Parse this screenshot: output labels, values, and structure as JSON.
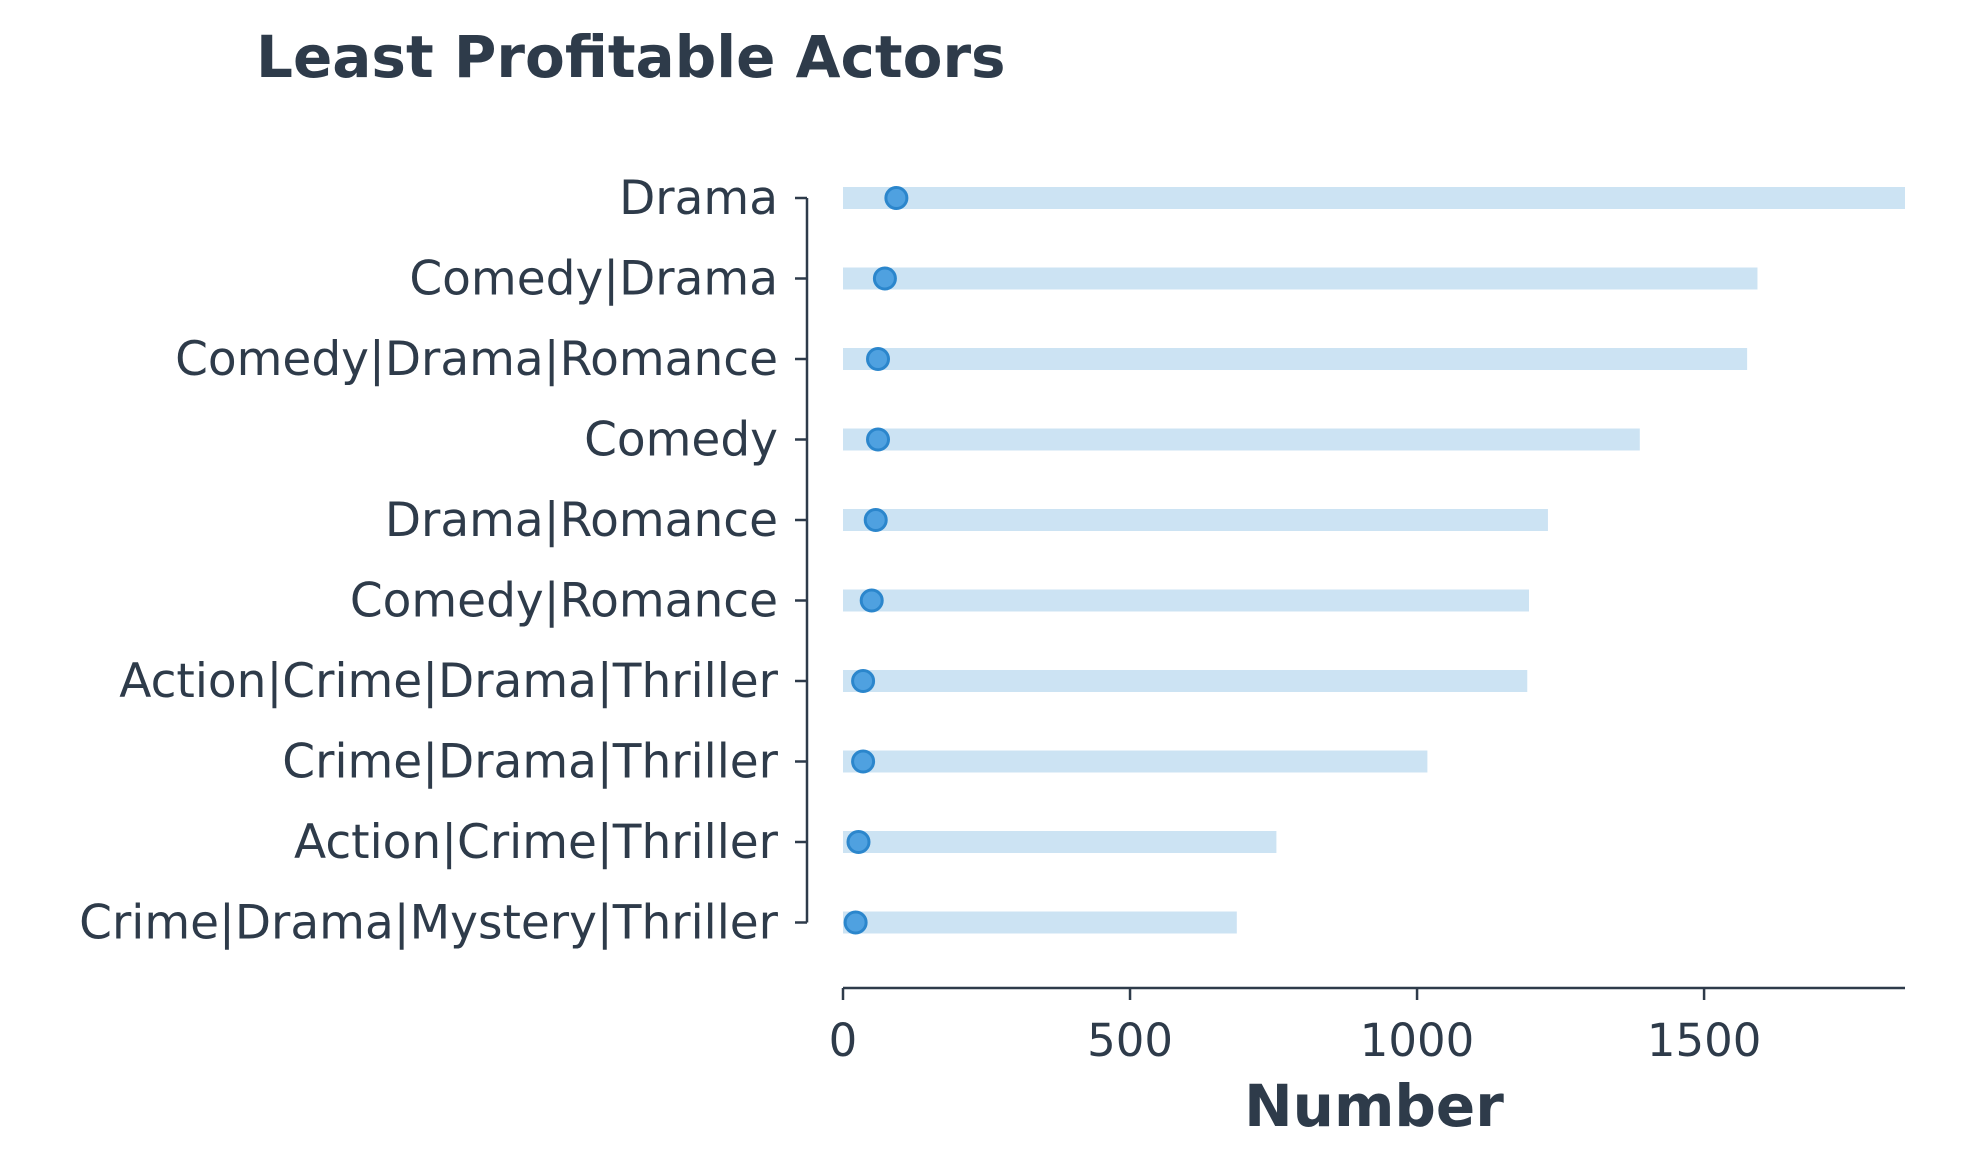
{
  "chart_data": {
    "type": "bar",
    "title": "Least Profitable Actors",
    "xlabel": "Number",
    "ylabel": "",
    "xlim": [
      0,
      1850
    ],
    "xticks": [
      0,
      500,
      1000,
      1500
    ],
    "grid": false,
    "legend": "none",
    "categories": [
      "Drama",
      "Comedy|Drama",
      "Comedy|Drama|Romance",
      "Comedy",
      "Drama|Romance",
      "Comedy|Romance",
      "Action|Crime|Drama|Thriller",
      "Crime|Drama|Thriller",
      "Action|Crime|Thriller",
      "Crime|Drama|Mystery|Thriller"
    ],
    "series": [
      {
        "kind": "bar",
        "values": [
          1850,
          1593,
          1575,
          1388,
          1228,
          1195,
          1192,
          1018,
          755,
          686
        ]
      },
      {
        "kind": "point",
        "values": [
          93,
          73,
          61,
          61,
          57,
          50,
          35,
          35,
          27,
          22
        ]
      }
    ],
    "colors": {
      "bar": "#cce3f3",
      "point_fill": "#4fa1e0",
      "point_stroke": "#2b86cc",
      "text": "#2e3b4a",
      "axis": "#2e3b4a"
    }
  }
}
